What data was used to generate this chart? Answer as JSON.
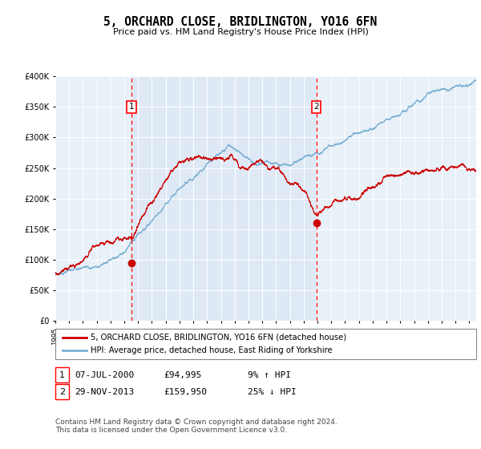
{
  "title": "5, ORCHARD CLOSE, BRIDLINGTON, YO16 6FN",
  "subtitle": "Price paid vs. HM Land Registry's House Price Index (HPI)",
  "ylim": [
    0,
    400000
  ],
  "xlim_start": 1995.0,
  "xlim_end": 2025.5,
  "annotation1": {
    "label": "1",
    "date": "07-JUL-2000",
    "price": 94995,
    "pct": "9% ↑ HPI",
    "x_year": 2000.52
  },
  "annotation2": {
    "label": "2",
    "date": "29-NOV-2013",
    "price": 159950,
    "pct": "25% ↓ HPI",
    "x_year": 2013.91
  },
  "legend_line1": "5, ORCHARD CLOSE, BRIDLINGTON, YO16 6FN (detached house)",
  "legend_line2": "HPI: Average price, detached house, East Riding of Yorkshire",
  "footer": "Contains HM Land Registry data © Crown copyright and database right 2024.\nThis data is licensed under the Open Government Licence v3.0.",
  "line_color_red": "#cc0000",
  "line_color_blue": "#7ab0d4",
  "bg_color": "#dde8f5",
  "plot_bg": "#e8f0f8"
}
